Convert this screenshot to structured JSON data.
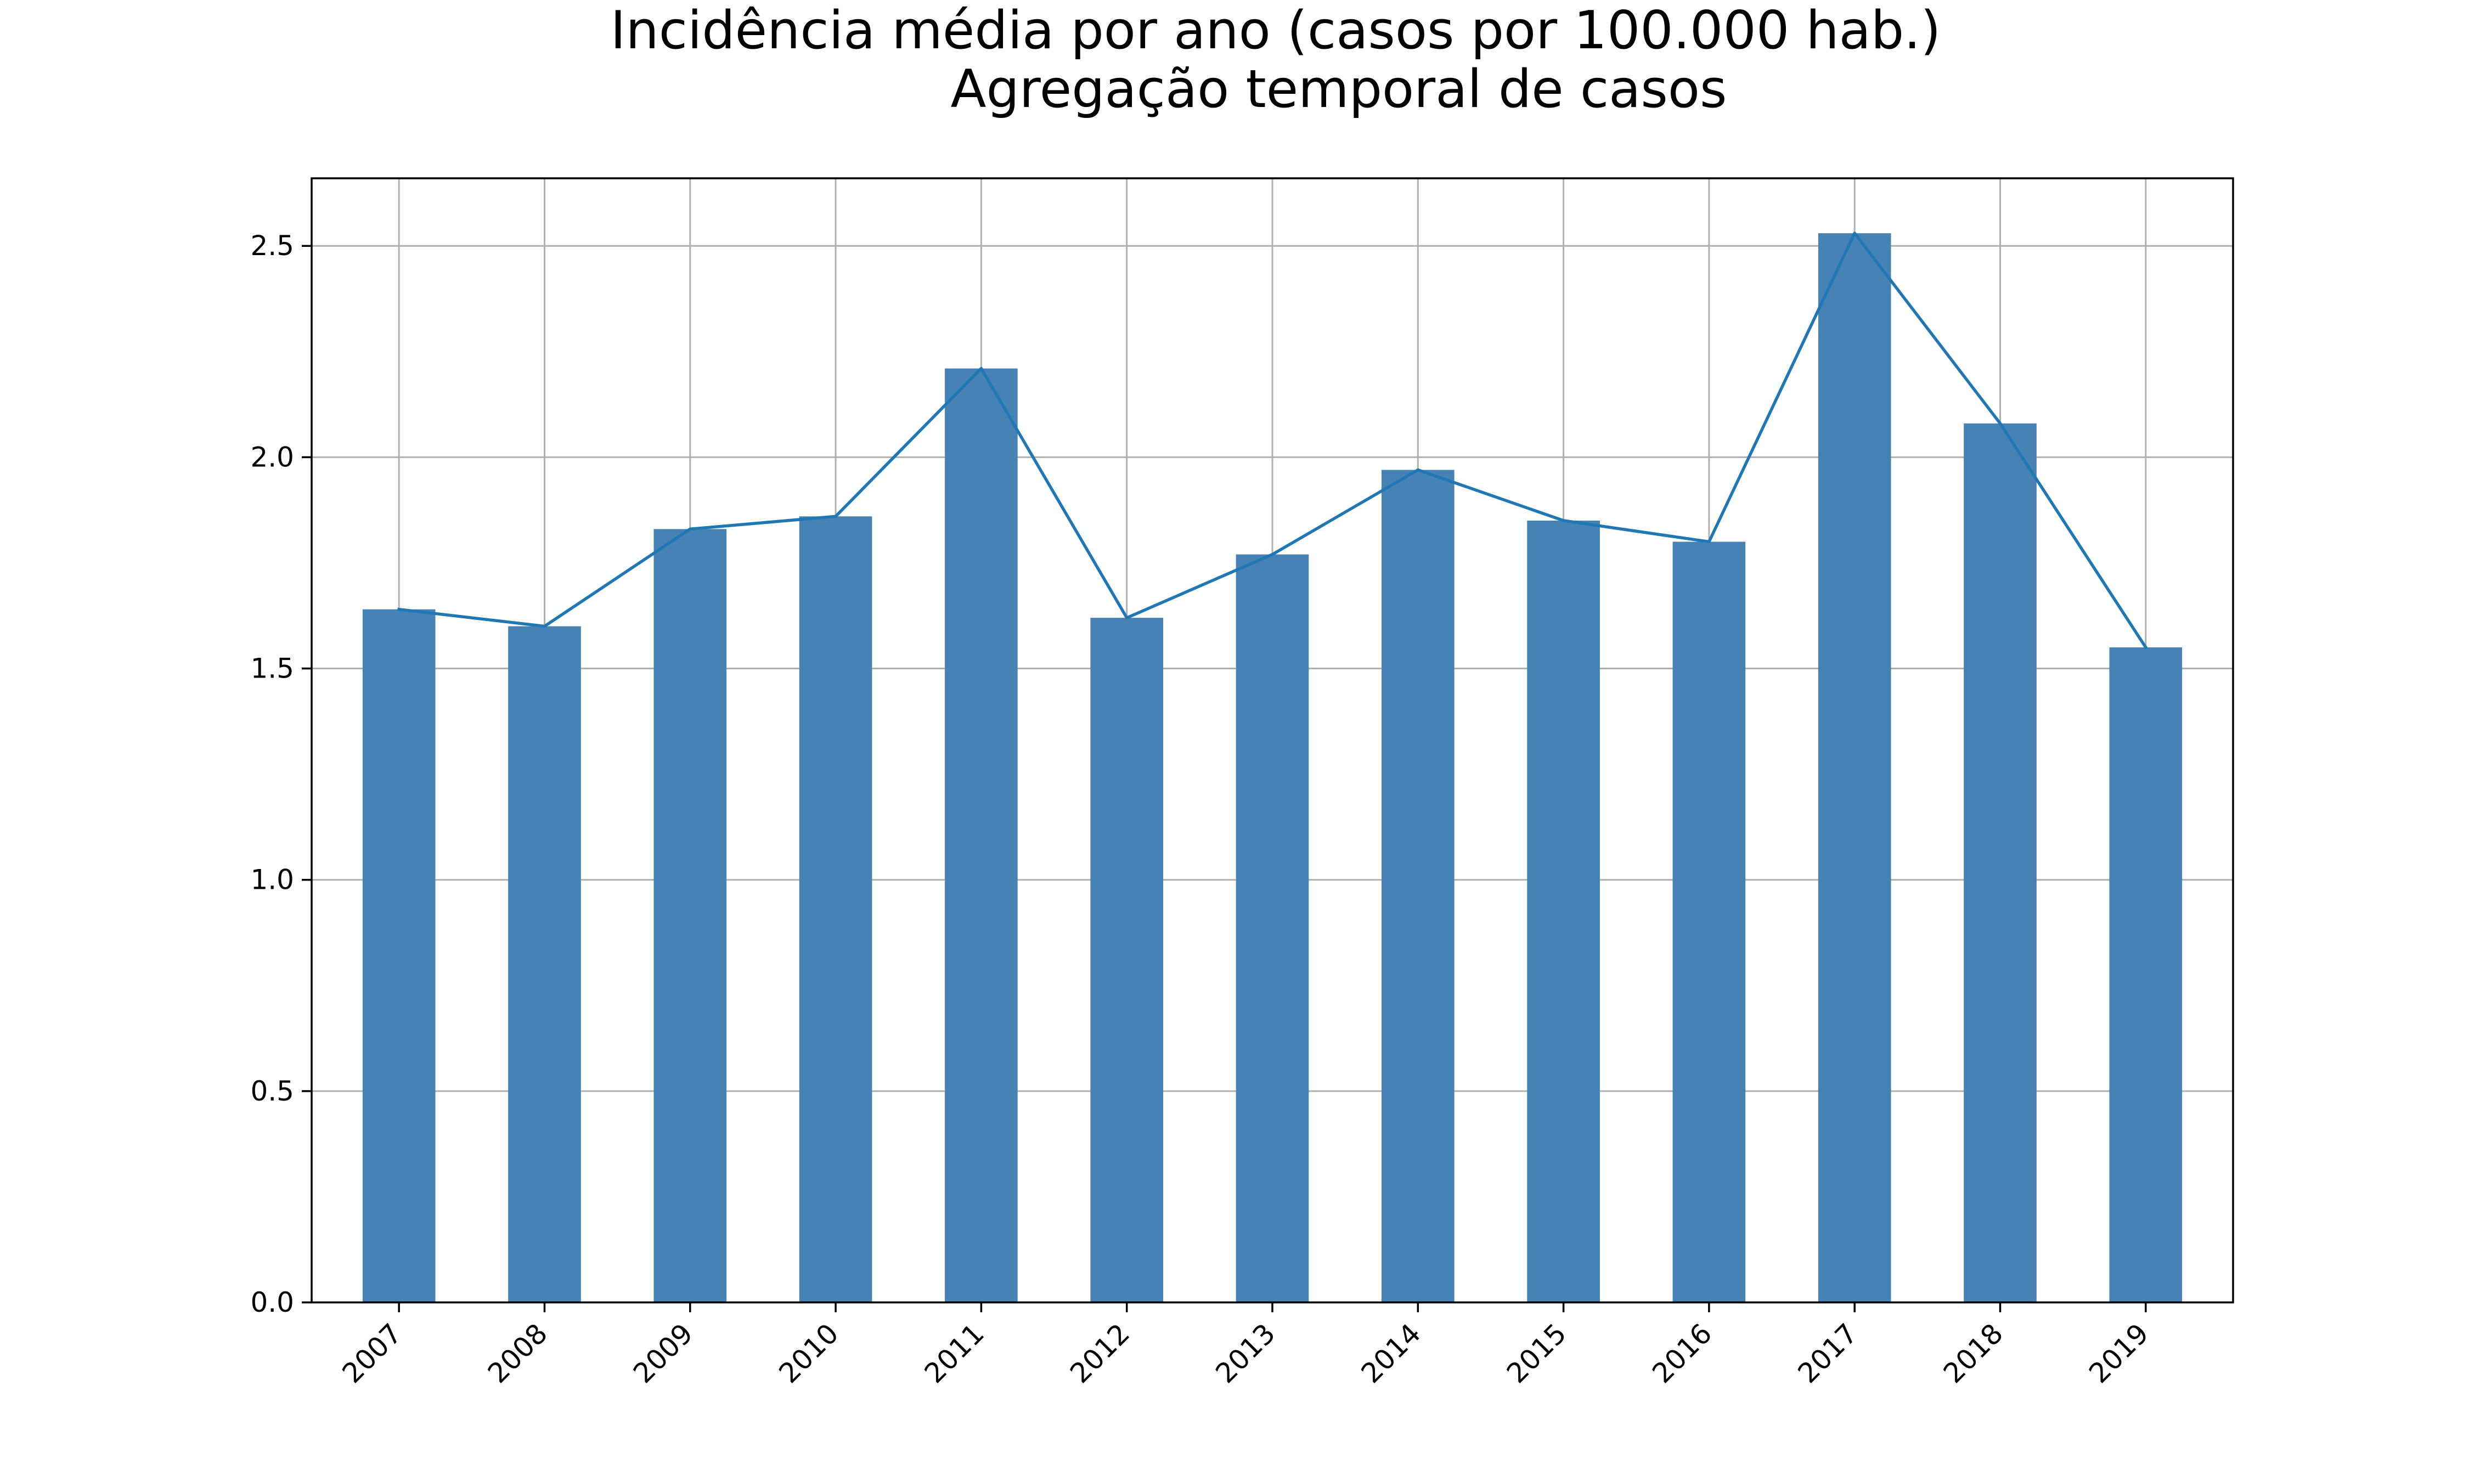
{
  "chart_data": {
    "type": "bar",
    "title": "Incidência média por ano (casos por 100.000 hab.)",
    "subtitle": "Agregação temporal de casos",
    "xlabel": "",
    "ylabel": "",
    "categories": [
      "2007",
      "2008",
      "2009",
      "2010",
      "2011",
      "2012",
      "2013",
      "2014",
      "2015",
      "2016",
      "2017",
      "2018",
      "2019"
    ],
    "series": [
      {
        "type": "bar",
        "values": [
          1.64,
          1.6,
          1.83,
          1.86,
          2.21,
          1.62,
          1.77,
          1.97,
          1.85,
          1.8,
          2.53,
          2.08,
          1.55
        ],
        "color": "#4682b4"
      },
      {
        "type": "line",
        "values": [
          1.64,
          1.6,
          1.83,
          1.86,
          2.21,
          1.62,
          1.77,
          1.97,
          1.85,
          1.8,
          2.53,
          2.08,
          1.55
        ],
        "color": "#1f77b4"
      }
    ],
    "ylim": [
      0,
      2.66
    ],
    "yticks": [
      "0.0",
      "0.5",
      "1.0",
      "1.5",
      "2.0",
      "2.5"
    ],
    "ytick_values": [
      0,
      0.5,
      1.0,
      1.5,
      2.0,
      2.5
    ],
    "grid": true,
    "legend": "none",
    "xtick_rotation": 45
  }
}
